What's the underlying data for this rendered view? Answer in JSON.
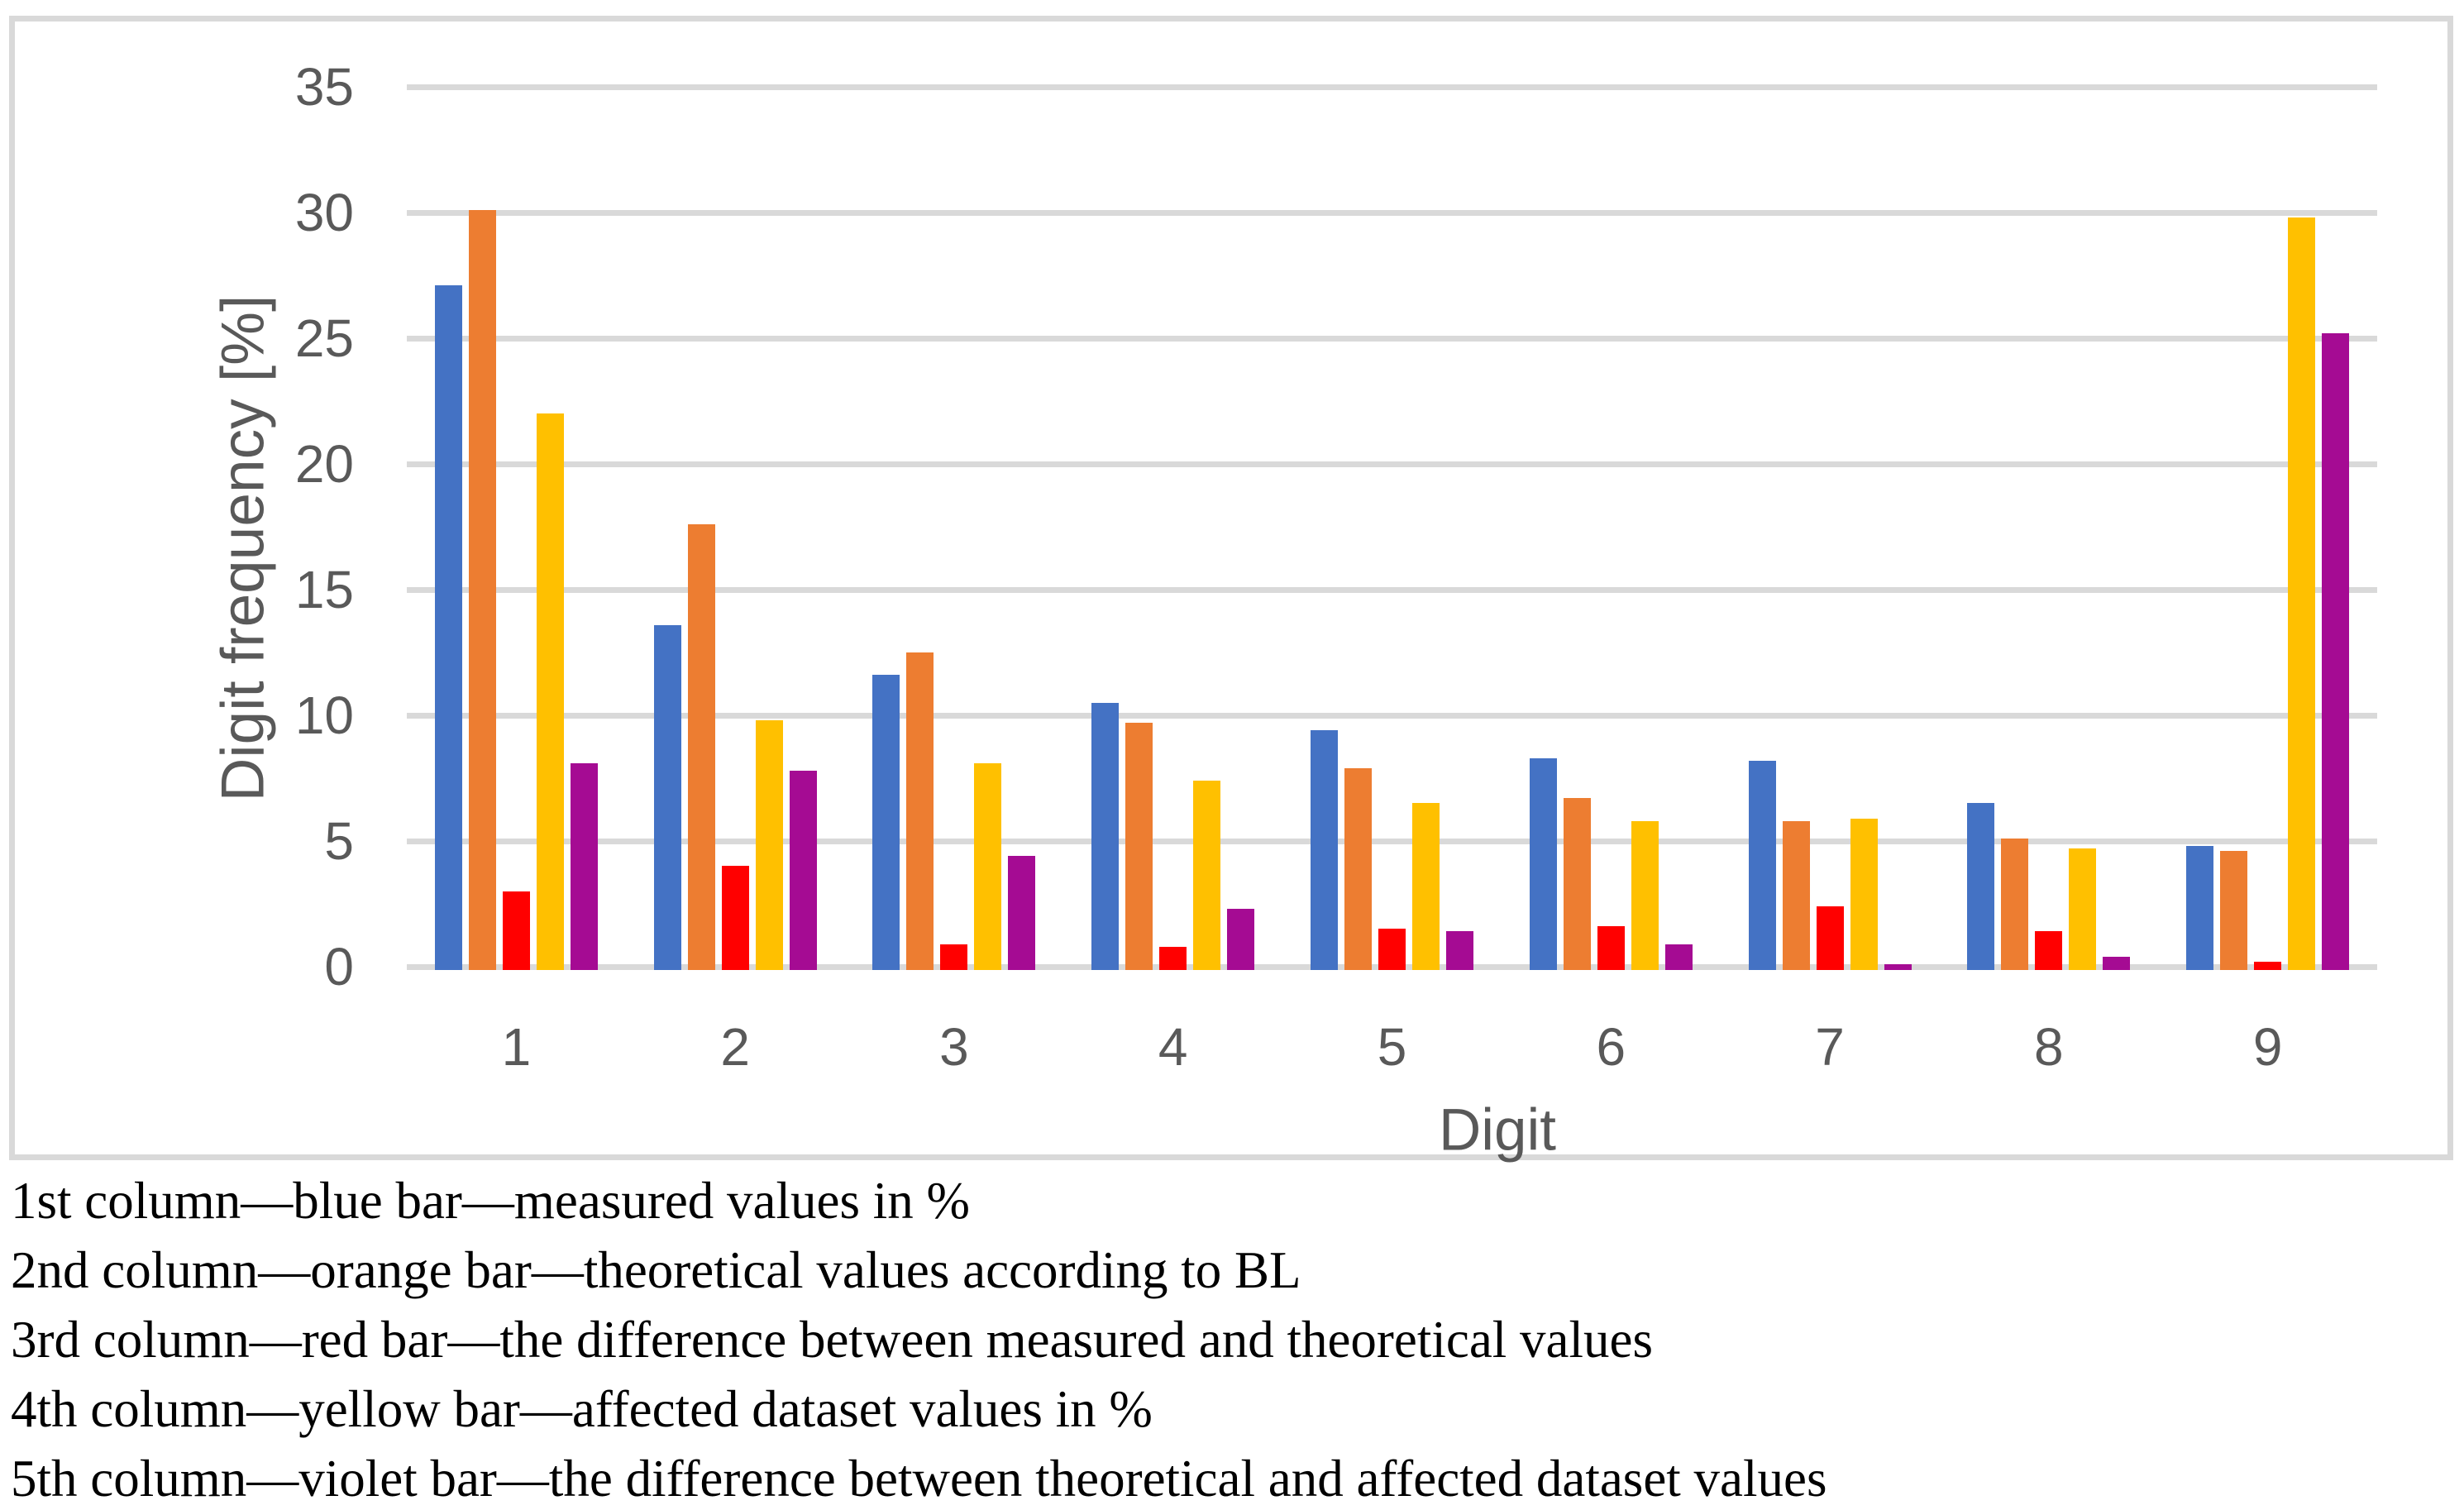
{
  "chart_data": {
    "type": "bar",
    "title": "",
    "xlabel": "Digit",
    "ylabel": "Digit frequency [%]",
    "categories": [
      "1",
      "2",
      "3",
      "4",
      "5",
      "6",
      "7",
      "8",
      "9"
    ],
    "y_ticks": [
      "0",
      "5",
      "10",
      "15",
      "20",
      "25",
      "30",
      "35"
    ],
    "ylim": [
      0,
      35
    ],
    "grid": true,
    "legend_position": "none",
    "series": [
      {
        "name": "measured values in %",
        "color": "#4472C4",
        "values": [
          27.1,
          13.6,
          11.6,
          10.5,
          9.4,
          8.3,
          8.2,
          6.5,
          4.8
        ]
      },
      {
        "name": "theoretical values according to BL",
        "color": "#ED7D31",
        "values": [
          30.1,
          17.6,
          12.5,
          9.7,
          7.9,
          6.7,
          5.8,
          5.1,
          4.6
        ]
      },
      {
        "name": "the difference between measured and theoretical values",
        "color": "#FF0000",
        "values": [
          3.0,
          4.0,
          0.9,
          0.8,
          1.5,
          1.6,
          2.4,
          1.4,
          0.2
        ]
      },
      {
        "name": "affected dataset values in %",
        "color": "#FFC000",
        "values": [
          22.0,
          9.8,
          8.1,
          7.4,
          6.5,
          5.8,
          5.9,
          4.7,
          29.8
        ]
      },
      {
        "name": "the difference between theoretical and affected dataset values",
        "color": "#A50B93",
        "values": [
          8.1,
          7.8,
          4.4,
          2.3,
          1.4,
          0.9,
          0.1,
          0.4,
          25.2
        ]
      }
    ]
  },
  "colors": {
    "gridline": "#D9D9D9",
    "frame_border": "#D9D9D9",
    "axis_text": "#595959",
    "caption_text": "#000000"
  },
  "captions": {
    "lines": [
      "1st column—blue bar—measured values in %",
      "2nd column—orange bar—theoretical values according to BL",
      "3rd column—red bar—the difference between measured and theoretical values",
      "4th column—yellow bar—affected dataset values in %",
      "5th column—violet bar—the difference between theoretical and affected dataset values"
    ]
  }
}
